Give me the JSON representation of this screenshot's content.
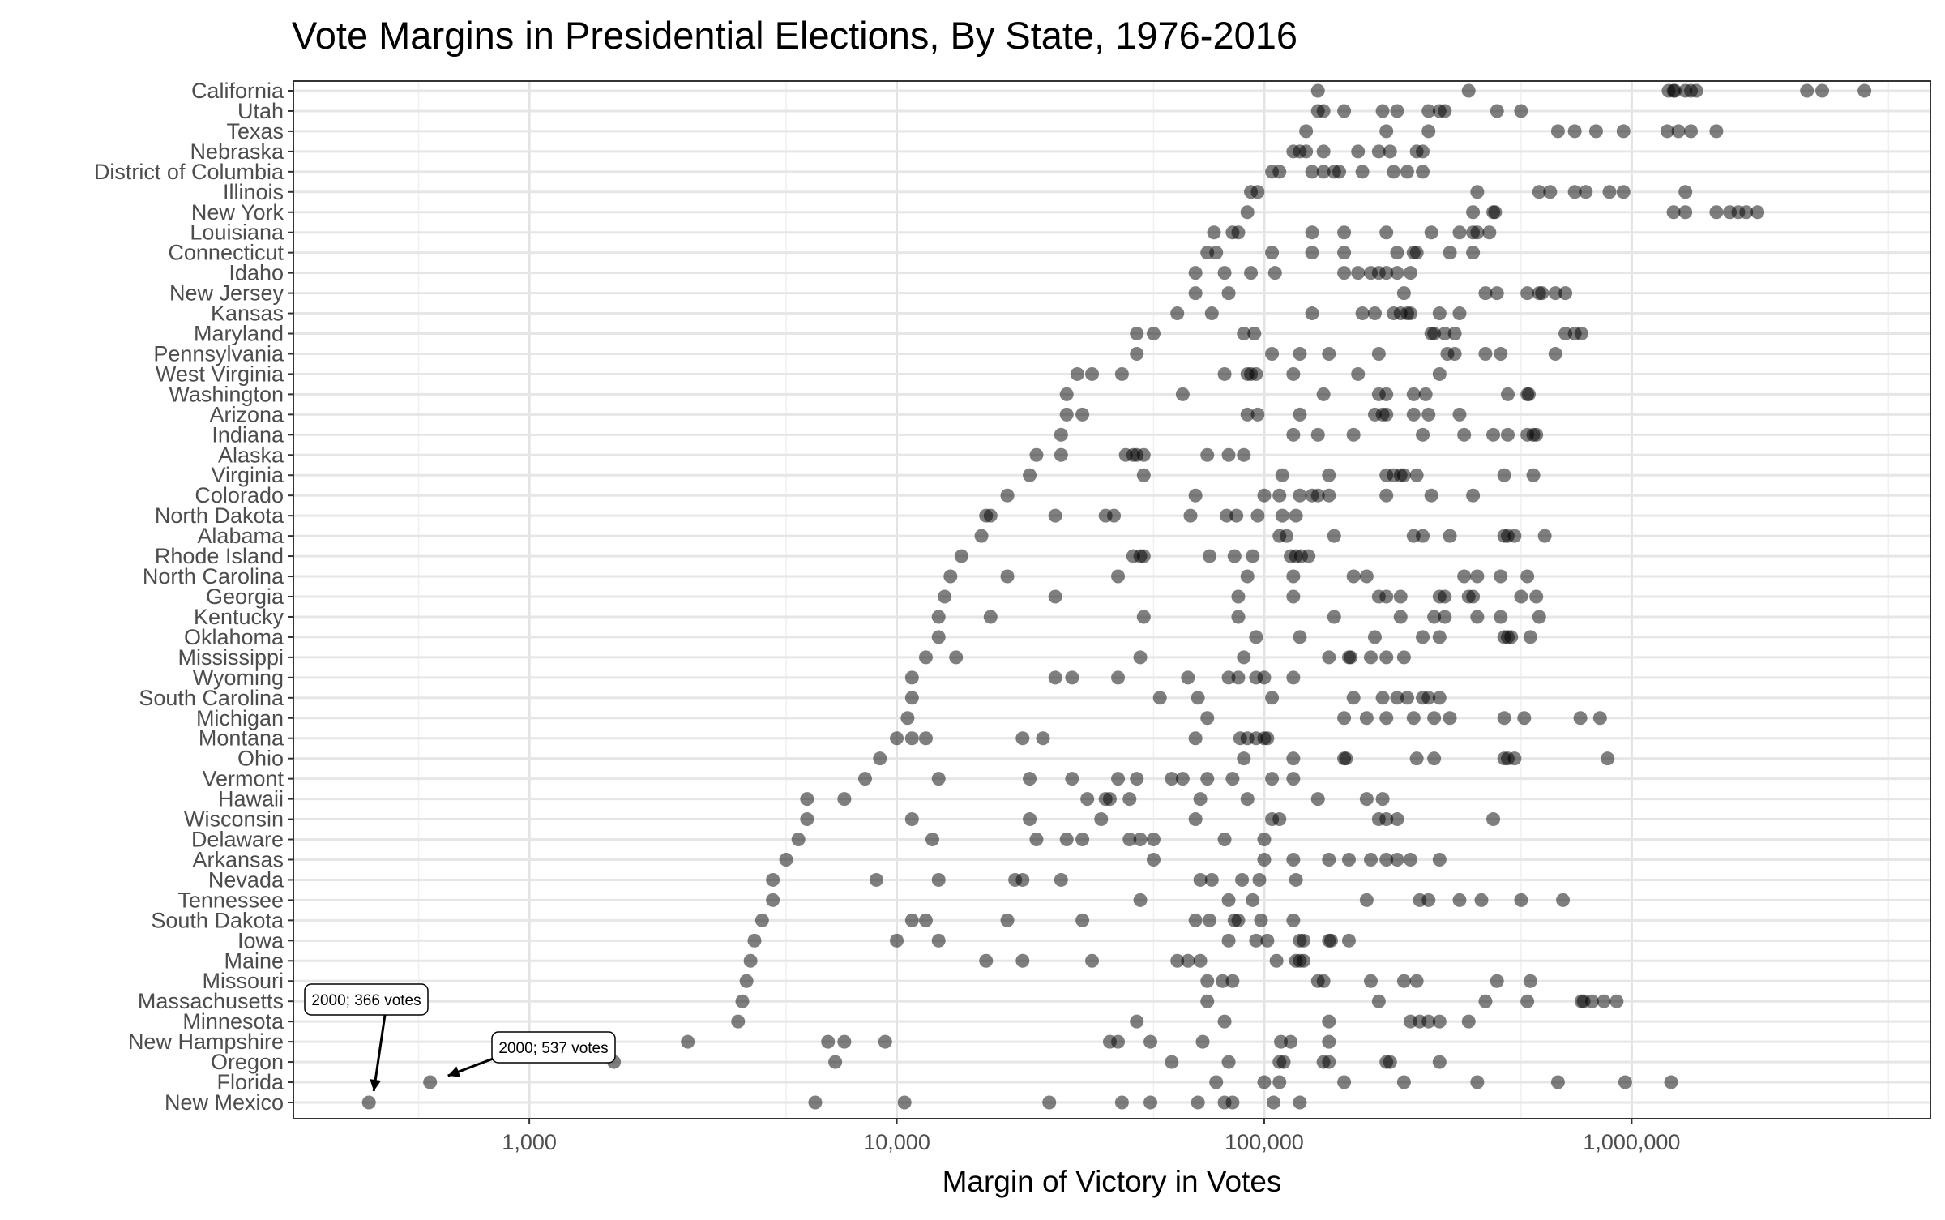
{
  "chart_data": {
    "type": "scatter",
    "title": "Vote Margins in Presidential Elections, By State, 1976-2016",
    "xlabel": "Margin of Victory in Votes",
    "ylabel": "",
    "x_scale": "log10",
    "xlim": [
      228,
      6500000
    ],
    "x_ticks": [
      1000,
      10000,
      100000,
      1000000
    ],
    "x_tick_labels": [
      "1,000",
      "10,000",
      "100,000",
      "1,000,000"
    ],
    "grid": true,
    "marker_color": "#000000",
    "marker_opacity": 0.5,
    "annotations": [
      {
        "text": "2000; 366 votes",
        "state": "New Mexico",
        "x": 366
      },
      {
        "text": "2000; 537 votes",
        "state": "Florida",
        "x": 537
      }
    ],
    "states": [
      {
        "name": "California",
        "values": [
          140000,
          360000,
          1260000,
          1300000,
          1310000,
          1400000,
          1450000,
          1500000,
          3000000,
          3300000,
          4300000
        ]
      },
      {
        "name": "Utah",
        "values": [
          140000,
          145000,
          165000,
          210000,
          230000,
          280000,
          300000,
          310000,
          430000,
          500000
        ]
      },
      {
        "name": "Texas",
        "values": [
          130000,
          215000,
          280000,
          630000,
          700000,
          800000,
          950000,
          1250000,
          1340000,
          1450000,
          1700000
        ]
      },
      {
        "name": "Nebraska",
        "values": [
          120000,
          125000,
          130000,
          145000,
          180000,
          205000,
          220000,
          260000,
          270000
        ]
      },
      {
        "name": "District of Columbia",
        "values": [
          105000,
          110000,
          135000,
          145000,
          155000,
          160000,
          185000,
          225000,
          245000,
          270000
        ]
      },
      {
        "name": "Illinois",
        "values": [
          92000,
          96000,
          380000,
          560000,
          600000,
          700000,
          750000,
          870000,
          950000,
          1400000
        ]
      },
      {
        "name": "New York",
        "values": [
          90000,
          370000,
          420000,
          425000,
          1300000,
          1400000,
          1700000,
          1850000,
          1950000,
          2050000,
          2200000
        ]
      },
      {
        "name": "Louisiana",
        "values": [
          73000,
          82000,
          85000,
          135000,
          165000,
          215000,
          285000,
          340000,
          370000,
          380000,
          410000
        ]
      },
      {
        "name": "Connecticut",
        "values": [
          70000,
          74000,
          105000,
          135000,
          165000,
          230000,
          255000,
          260000,
          320000,
          370000
        ]
      },
      {
        "name": "Idaho",
        "values": [
          65000,
          78000,
          92000,
          107000,
          165000,
          180000,
          195000,
          205000,
          215000,
          230000,
          250000
        ]
      },
      {
        "name": "New Jersey",
        "values": [
          65000,
          80000,
          240000,
          400000,
          430000,
          520000,
          560000,
          570000,
          620000,
          660000
        ]
      },
      {
        "name": "Kansas",
        "values": [
          58000,
          72000,
          135000,
          185000,
          200000,
          225000,
          235000,
          245000,
          250000,
          300000,
          340000
        ]
      },
      {
        "name": "Maryland",
        "values": [
          45000,
          50000,
          88000,
          94000,
          285000,
          290000,
          310000,
          330000,
          660000,
          700000,
          730000
        ]
      },
      {
        "name": "Pennsylvania",
        "values": [
          45000,
          105000,
          125000,
          150000,
          205000,
          315000,
          330000,
          400000,
          440000,
          620000
        ]
      },
      {
        "name": "West Virginia",
        "values": [
          31000,
          34000,
          41000,
          78000,
          90000,
          92000,
          95000,
          120000,
          180000,
          300000
        ]
      },
      {
        "name": "Washington",
        "values": [
          29000,
          60000,
          145000,
          205000,
          215000,
          255000,
          275000,
          460000,
          520000,
          525000
        ]
      },
      {
        "name": "Arizona",
        "values": [
          29000,
          32000,
          90000,
          96000,
          125000,
          200000,
          210000,
          215000,
          255000,
          280000,
          340000
        ]
      },
      {
        "name": "Indiana",
        "values": [
          28000,
          120000,
          140000,
          175000,
          270000,
          350000,
          420000,
          460000,
          520000,
          540000,
          550000
        ]
      },
      {
        "name": "Alaska",
        "values": [
          24000,
          28000,
          42000,
          44000,
          45000,
          47000,
          70000,
          80000,
          88000
        ]
      },
      {
        "name": "Virginia",
        "values": [
          23000,
          47000,
          112000,
          150000,
          215000,
          225000,
          235000,
          240000,
          260000,
          450000,
          540000
        ]
      },
      {
        "name": "Colorado",
        "values": [
          20000,
          65000,
          100000,
          110000,
          125000,
          135000,
          140000,
          150000,
          215000,
          285000,
          370000
        ]
      },
      {
        "name": "North Dakota",
        "values": [
          17500,
          18000,
          27000,
          37000,
          39000,
          63000,
          79000,
          84000,
          96000,
          112000,
          122000
        ]
      },
      {
        "name": "Alabama",
        "values": [
          17000,
          110000,
          115000,
          155000,
          255000,
          270000,
          320000,
          450000,
          460000,
          480000,
          580000
        ]
      },
      {
        "name": "Rhode Island",
        "values": [
          15000,
          44000,
          46000,
          47000,
          71000,
          83000,
          93000,
          118000,
          122000,
          126000,
          132000
        ]
      },
      {
        "name": "North Carolina",
        "values": [
          14000,
          20000,
          40000,
          90000,
          120000,
          175000,
          190000,
          350000,
          380000,
          440000,
          520000
        ]
      },
      {
        "name": "Georgia",
        "values": [
          13500,
          27000,
          85000,
          120000,
          205000,
          215000,
          235000,
          300000,
          310000,
          360000,
          370000,
          500000,
          550000
        ]
      },
      {
        "name": "Kentucky",
        "values": [
          13000,
          18000,
          47000,
          85000,
          155000,
          235000,
          290000,
          310000,
          380000,
          440000,
          560000
        ]
      },
      {
        "name": "Oklahoma",
        "values": [
          13000,
          95000,
          125000,
          200000,
          270000,
          300000,
          450000,
          460000,
          470000,
          530000
        ]
      },
      {
        "name": "Mississippi",
        "values": [
          12000,
          14500,
          46000,
          88000,
          150000,
          170000,
          172000,
          195000,
          215000,
          240000
        ]
      },
      {
        "name": "Wyoming",
        "values": [
          11000,
          27000,
          30000,
          40000,
          62000,
          80000,
          85000,
          95000,
          100000,
          120000
        ]
      },
      {
        "name": "South Carolina",
        "values": [
          11000,
          52000,
          66000,
          105000,
          175000,
          210000,
          230000,
          245000,
          270000,
          280000,
          300000
        ]
      },
      {
        "name": "Michigan",
        "values": [
          10700,
          70000,
          165000,
          190000,
          215000,
          255000,
          290000,
          320000,
          450000,
          510000,
          725000,
          820000
        ]
      },
      {
        "name": "Montana",
        "values": [
          10000,
          11000,
          12000,
          22000,
          25000,
          65000,
          86000,
          90000,
          95000,
          100000,
          102000
        ]
      },
      {
        "name": "Ohio",
        "values": [
          9000,
          88000,
          120000,
          165000,
          167000,
          260000,
          290000,
          450000,
          460000,
          480000,
          860000
        ]
      },
      {
        "name": "Vermont",
        "values": [
          8200,
          13000,
          23000,
          30000,
          40000,
          45000,
          56000,
          60000,
          70000,
          82000,
          105000,
          120000
        ]
      },
      {
        "name": "Hawaii",
        "values": [
          5700,
          7200,
          33000,
          37000,
          38000,
          43000,
          67000,
          90000,
          140000,
          190000,
          210000
        ]
      },
      {
        "name": "Wisconsin",
        "values": [
          5700,
          11000,
          23000,
          36000,
          65000,
          105000,
          110000,
          205000,
          215000,
          230000,
          420000
        ]
      },
      {
        "name": "Delaware",
        "values": [
          5400,
          12500,
          24000,
          29000,
          32000,
          43000,
          46000,
          50000,
          78000,
          100000
        ]
      },
      {
        "name": "Arkansas",
        "values": [
          5000,
          50000,
          100000,
          120000,
          150000,
          170000,
          195000,
          215000,
          230000,
          250000,
          300000
        ]
      },
      {
        "name": "Nevada",
        "values": [
          4600,
          8800,
          13000,
          21000,
          22000,
          28000,
          67000,
          72000,
          87000,
          97000,
          122000
        ]
      },
      {
        "name": "Tennessee",
        "values": [
          4600,
          46000,
          80000,
          93000,
          190000,
          265000,
          280000,
          340000,
          390000,
          500000,
          650000
        ]
      },
      {
        "name": "South Dakota",
        "values": [
          4300,
          11000,
          12000,
          20000,
          32000,
          65000,
          71000,
          83000,
          85000,
          98000,
          120000
        ]
      },
      {
        "name": "Iowa",
        "values": [
          4100,
          10000,
          13000,
          80000,
          95000,
          102000,
          125000,
          128000,
          150000,
          152000,
          170000
        ]
      },
      {
        "name": "Maine",
        "values": [
          4000,
          17500,
          22000,
          34000,
          58000,
          62000,
          67000,
          108000,
          122000,
          125000,
          128000
        ]
      },
      {
        "name": "Missouri",
        "values": [
          3900,
          70000,
          77000,
          82000,
          140000,
          145000,
          195000,
          240000,
          260000,
          430000,
          530000
        ]
      },
      {
        "name": "Massachusetts",
        "values": [
          3800,
          70000,
          205000,
          400000,
          520000,
          730000,
          740000,
          780000,
          840000,
          910000
        ]
      },
      {
        "name": "Minnesota",
        "values": [
          3700,
          45000,
          78000,
          150000,
          250000,
          265000,
          280000,
          300000,
          360000
        ]
      },
      {
        "name": "New Hampshire",
        "values": [
          2700,
          6500,
          7200,
          9300,
          38000,
          40000,
          49000,
          68000,
          111000,
          118000,
          150000
        ]
      },
      {
        "name": "Oregon",
        "values": [
          1700,
          6800,
          56000,
          80000,
          110000,
          113000,
          145000,
          150000,
          215000,
          220000,
          300000
        ]
      },
      {
        "name": "Florida",
        "values": [
          537,
          74000,
          100000,
          110000,
          165000,
          240000,
          380000,
          630000,
          960000,
          1280000
        ]
      },
      {
        "name": "New Mexico",
        "values": [
          366,
          6000,
          10500,
          26000,
          41000,
          49000,
          66000,
          78000,
          82000,
          106000,
          125000
        ]
      }
    ]
  }
}
